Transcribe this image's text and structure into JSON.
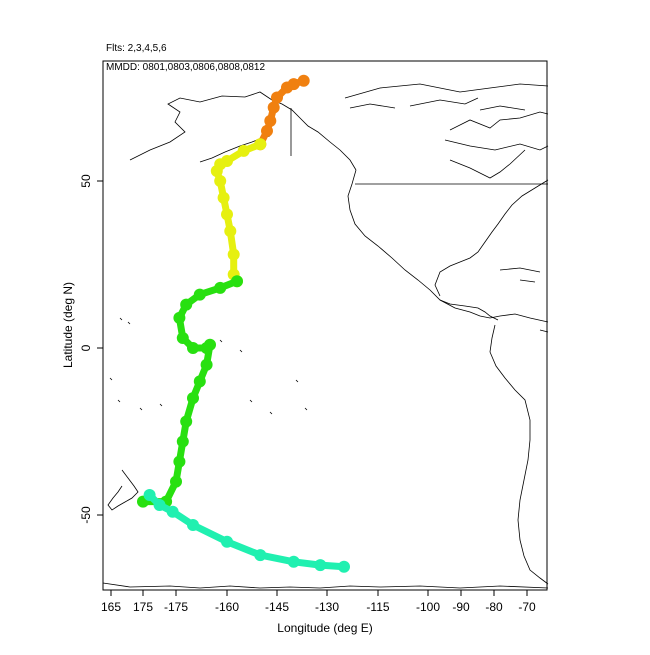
{
  "header": {
    "flights": "Flts: 2,3,4,5,6",
    "dates": "MMDD: 0801,0803,0806,0808,0812"
  },
  "axes": {
    "xlabel": "Longitude (deg E)",
    "ylabel": "Latitude (deg N)",
    "x_ticks": [
      "165",
      "175",
      "-175",
      "-160",
      "-145",
      "-130",
      "-115",
      "-100",
      "-90",
      "-80",
      "-70"
    ],
    "y_ticks": [
      "50",
      "0",
      "-50"
    ]
  },
  "colors": {
    "coast": "#000000",
    "track_orange": "#f08010",
    "track_yellow": "#e6f010",
    "track_green": "#28e010",
    "track_cyan": "#20f0b0"
  },
  "chart_data": {
    "type": "map",
    "xlabel": "Longitude (deg E)",
    "ylabel": "Latitude (deg N)",
    "ylim": [
      -72,
      90
    ],
    "tracks": [
      {
        "color": "#f08010",
        "points": [
          [
            -137,
            80
          ],
          [
            -140,
            79
          ],
          [
            -142,
            78
          ],
          [
            -145,
            75
          ],
          [
            -146,
            72
          ],
          [
            -147,
            68
          ],
          [
            -148,
            65
          ],
          [
            -150,
            61
          ]
        ]
      },
      {
        "color": "#e6f010",
        "points": [
          [
            -150,
            61
          ],
          [
            -155,
            59
          ],
          [
            -160,
            56
          ],
          [
            -162,
            55
          ],
          [
            -163,
            53
          ],
          [
            -162,
            50
          ],
          [
            -161,
            45
          ],
          [
            -160,
            40
          ],
          [
            -159,
            35
          ],
          [
            -158,
            28
          ],
          [
            -158,
            22
          ],
          [
            -157,
            20
          ]
        ]
      },
      {
        "color": "#28e010",
        "points": [
          [
            -157,
            20
          ],
          [
            -162,
            18
          ],
          [
            -168,
            16
          ],
          [
            -172,
            13
          ],
          [
            -174,
            9
          ],
          [
            -173,
            3
          ],
          [
            -170,
            0
          ],
          [
            -166,
            0
          ],
          [
            -165,
            1
          ],
          [
            -166,
            -5
          ],
          [
            -168,
            -10
          ],
          [
            -170,
            -15
          ],
          [
            -172,
            -22
          ],
          [
            -173,
            -28
          ],
          [
            -174,
            -34
          ],
          [
            -175,
            -40
          ],
          [
            -178,
            -46
          ],
          [
            -185,
            -46
          ]
        ]
      },
      {
        "color": "#20f0b0",
        "points": [
          [
            -183,
            -44
          ],
          [
            -180,
            -47
          ],
          [
            -176,
            -49
          ],
          [
            -170,
            -53
          ],
          [
            -160,
            -58
          ],
          [
            -150,
            -62
          ],
          [
            -140,
            -64
          ],
          [
            -132,
            -65
          ],
          [
            -125,
            -65.5
          ]
        ]
      }
    ]
  }
}
